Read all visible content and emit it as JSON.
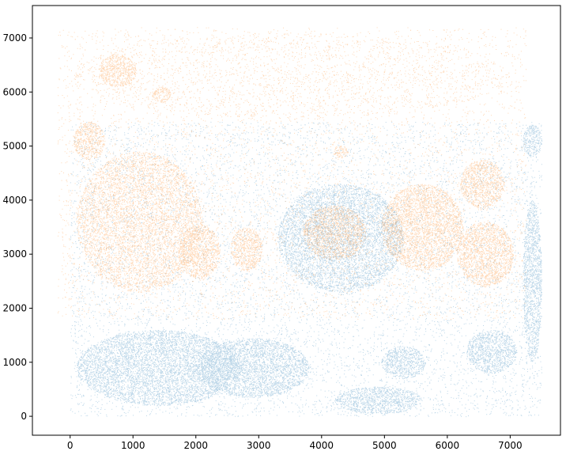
{
  "chart_data": {
    "type": "scatter",
    "title": "",
    "xlabel": "",
    "ylabel": "",
    "xlim": [
      -600,
      7800
    ],
    "ylim": [
      -350,
      7600
    ],
    "grid": false,
    "legend": "none",
    "x_ticks": [
      {
        "value": 0,
        "label": "0"
      },
      {
        "value": 1000,
        "label": "1000"
      },
      {
        "value": 2000,
        "label": "2000"
      },
      {
        "value": 3000,
        "label": "3000"
      },
      {
        "value": 4000,
        "label": "4000"
      },
      {
        "value": 5000,
        "label": "5000"
      },
      {
        "value": 6000,
        "label": "6000"
      },
      {
        "value": 7000,
        "label": "7000"
      }
    ],
    "y_ticks": [
      {
        "value": 0,
        "label": "0"
      },
      {
        "value": 1000,
        "label": "1000"
      },
      {
        "value": 2000,
        "label": "2000"
      },
      {
        "value": 3000,
        "label": "3000"
      },
      {
        "value": 4000,
        "label": "4000"
      },
      {
        "value": 5000,
        "label": "5000"
      },
      {
        "value": 6000,
        "label": "6000"
      },
      {
        "value": 7000,
        "label": "7000"
      }
    ],
    "series": [
      {
        "color": "#1f77b4",
        "alpha": 0.3,
        "extent": {
          "x": [
            0,
            7500
          ],
          "y": [
            0,
            5450
          ]
        },
        "dense_regions": [
          {
            "cx": 1400,
            "cy": 900,
            "rx": 1300,
            "ry": 700
          },
          {
            "cx": 2900,
            "cy": 900,
            "rx": 900,
            "ry": 550
          },
          {
            "cx": 5300,
            "cy": 1000,
            "rx": 350,
            "ry": 300
          },
          {
            "cx": 4900,
            "cy": 300,
            "rx": 700,
            "ry": 250
          },
          {
            "cx": 7350,
            "cy": 2500,
            "rx": 150,
            "ry": 1500
          },
          {
            "cx": 7350,
            "cy": 5100,
            "rx": 150,
            "ry": 300
          },
          {
            "cx": 6700,
            "cy": 1200,
            "rx": 400,
            "ry": 400
          },
          {
            "cx": 4300,
            "cy": 3300,
            "rx": 1000,
            "ry": 1000
          }
        ]
      },
      {
        "color": "#ff7f0e",
        "alpha": 0.3,
        "extent": {
          "x": [
            -200,
            7250
          ],
          "y": [
            1800,
            7200
          ]
        },
        "dense_regions": [
          {
            "cx": 1100,
            "cy": 3600,
            "rx": 1000,
            "ry": 1300
          },
          {
            "cx": 300,
            "cy": 5100,
            "rx": 250,
            "ry": 350
          },
          {
            "cx": 2050,
            "cy": 3050,
            "rx": 330,
            "ry": 500
          },
          {
            "cx": 2800,
            "cy": 3100,
            "rx": 250,
            "ry": 400
          },
          {
            "cx": 5600,
            "cy": 3500,
            "rx": 650,
            "ry": 800
          },
          {
            "cx": 6550,
            "cy": 4300,
            "rx": 350,
            "ry": 450
          },
          {
            "cx": 6600,
            "cy": 3000,
            "rx": 450,
            "ry": 600
          },
          {
            "cx": 4300,
            "cy": 4900,
            "rx": 120,
            "ry": 120
          },
          {
            "cx": 4200,
            "cy": 3400,
            "rx": 500,
            "ry": 500
          },
          {
            "cx": 750,
            "cy": 6400,
            "rx": 300,
            "ry": 300
          },
          {
            "cx": 1450,
            "cy": 5950,
            "rx": 150,
            "ry": 150
          }
        ],
        "sparse_regions": [
          {
            "cx": 3500,
            "cy": 6300,
            "rx": 3500,
            "ry": 800
          }
        ]
      }
    ]
  }
}
